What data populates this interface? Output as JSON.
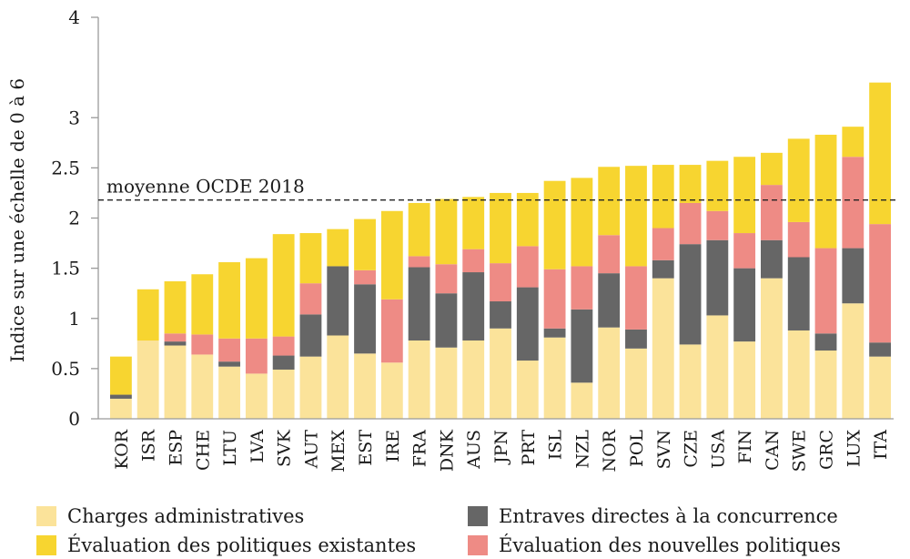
{
  "chart_data": {
    "type": "bar",
    "stacked": true,
    "ylabel": "Indice sur une échelle de 0 à 6",
    "ylim": [
      0,
      4
    ],
    "yticks": [
      0,
      0.5,
      1,
      1.5,
      2,
      2.5,
      3,
      4
    ],
    "reference_line": {
      "label": "moyenne OCDE 2018",
      "value": 2.18
    },
    "categories": [
      "KOR",
      "ISR",
      "ESP",
      "CHE",
      "LTU",
      "LVA",
      "SVK",
      "AUT",
      "MEX",
      "EST",
      "IRE",
      "FRA",
      "DNK",
      "AUS",
      "JPN",
      "PRT",
      "ISL",
      "NZL",
      "NOR",
      "POL",
      "SVN",
      "CZE",
      "USA",
      "FIN",
      "CAN",
      "SWE",
      "GRC",
      "LUX",
      "ITA"
    ],
    "series": [
      {
        "name": "Charges administratives",
        "color": "#fbe39a",
        "values": [
          0.2,
          0.78,
          0.73,
          0.64,
          0.52,
          0.45,
          0.49,
          0.62,
          0.83,
          0.65,
          0.56,
          0.78,
          0.71,
          0.78,
          0.9,
          0.58,
          0.81,
          0.36,
          0.91,
          0.7,
          1.4,
          0.74,
          1.03,
          0.77,
          1.4,
          0.88,
          0.68,
          1.15,
          0.62
        ]
      },
      {
        "name": "Entraves directes à la concurrence",
        "color": "#666666",
        "values": [
          0.04,
          0.0,
          0.04,
          0.0,
          0.05,
          0.0,
          0.14,
          0.42,
          0.69,
          0.69,
          0.0,
          0.73,
          0.54,
          0.68,
          0.27,
          0.73,
          0.09,
          0.73,
          0.54,
          0.19,
          0.18,
          1.0,
          0.75,
          0.73,
          0.38,
          0.73,
          0.17,
          0.55,
          0.14
        ]
      },
      {
        "name": "Évaluation des nouvelles politiques",
        "color": "#ee8b85",
        "values": [
          0.0,
          0.0,
          0.08,
          0.2,
          0.23,
          0.35,
          0.19,
          0.31,
          0.0,
          0.14,
          0.63,
          0.11,
          0.29,
          0.23,
          0.38,
          0.41,
          0.59,
          0.43,
          0.38,
          0.63,
          0.32,
          0.41,
          0.29,
          0.35,
          0.55,
          0.35,
          0.85,
          0.91,
          1.18
        ]
      },
      {
        "name": "Évaluation des politiques existantes",
        "color": "#f7d530",
        "values": [
          0.38,
          0.51,
          0.52,
          0.6,
          0.76,
          0.8,
          1.02,
          0.5,
          0.37,
          0.51,
          0.88,
          0.53,
          0.65,
          0.52,
          0.7,
          0.53,
          0.88,
          0.88,
          0.68,
          1.0,
          0.63,
          0.38,
          0.5,
          0.76,
          0.32,
          0.83,
          1.13,
          0.3,
          1.41
        ]
      }
    ],
    "grid": false,
    "legend_position": "bottom"
  },
  "legend": {
    "items": [
      {
        "label": "Charges administratives",
        "color": "#fbe39a"
      },
      {
        "label": "Entraves directes à la concurrence",
        "color": "#666666"
      },
      {
        "label": "Évaluation des politiques existantes",
        "color": "#f7d530"
      },
      {
        "label": "Évaluation des nouvelles politiques",
        "color": "#ee8b85"
      }
    ]
  }
}
